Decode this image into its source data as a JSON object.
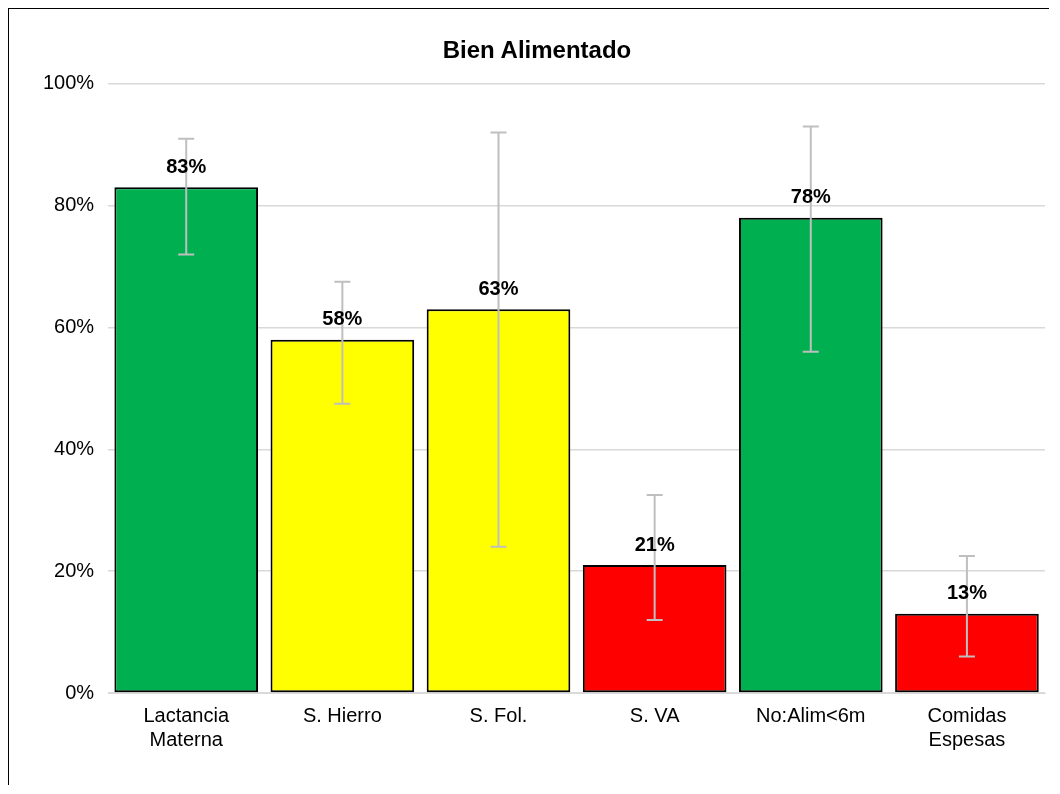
{
  "chart_data": {
    "type": "bar",
    "title": "Bien Alimentado",
    "categories": [
      "Lactancia\nMaterna",
      "S. Hierro",
      "S. Fol.",
      "S. VA",
      "No:Alim<6m",
      "Comidas\nEspesas"
    ],
    "values": [
      83,
      58,
      63,
      21,
      78,
      13
    ],
    "colors": [
      "#00b050",
      "#ffff00",
      "#ffff00",
      "#ff0000",
      "#00b050",
      "#ff0000"
    ],
    "errors": [
      [
        72,
        91
      ],
      [
        47.5,
        67.5
      ],
      [
        24,
        92
      ],
      [
        12,
        32.5
      ],
      [
        56,
        93
      ],
      [
        6,
        22.5
      ]
    ],
    "value_labels": [
      "83%",
      "58%",
      "63%",
      "21%",
      "78%",
      "13%"
    ],
    "ylim": [
      0,
      100
    ],
    "yticks": [
      {
        "value": 0,
        "label": "0%"
      },
      {
        "value": 20,
        "label": "20%"
      },
      {
        "value": 40,
        "label": "40%"
      },
      {
        "value": 60,
        "label": "60%"
      },
      {
        "value": 80,
        "label": "80%"
      },
      {
        "value": 100,
        "label": "100%"
      }
    ],
    "grid": "y",
    "legend": false
  }
}
